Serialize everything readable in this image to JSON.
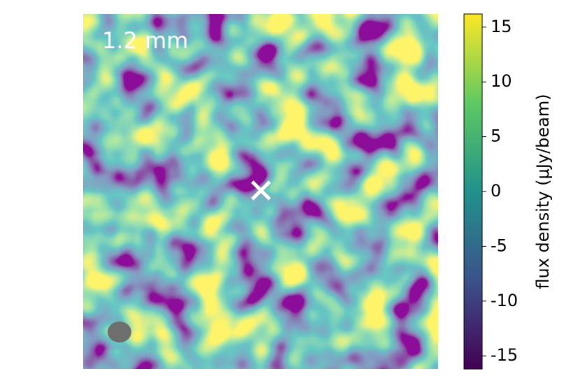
{
  "chart_data": {
    "type": "image",
    "annotation": "1.2 mm",
    "colorbar_label": "flux density (μJy/beam)",
    "clim": [
      -16.2,
      16.2
    ],
    "colorbar_ticks": [
      -15,
      -10,
      -5,
      0,
      5,
      10,
      15
    ],
    "colormap": [
      "#440154",
      "#3b528b",
      "#21918c",
      "#5ec962",
      "#fde725"
    ]
  }
}
